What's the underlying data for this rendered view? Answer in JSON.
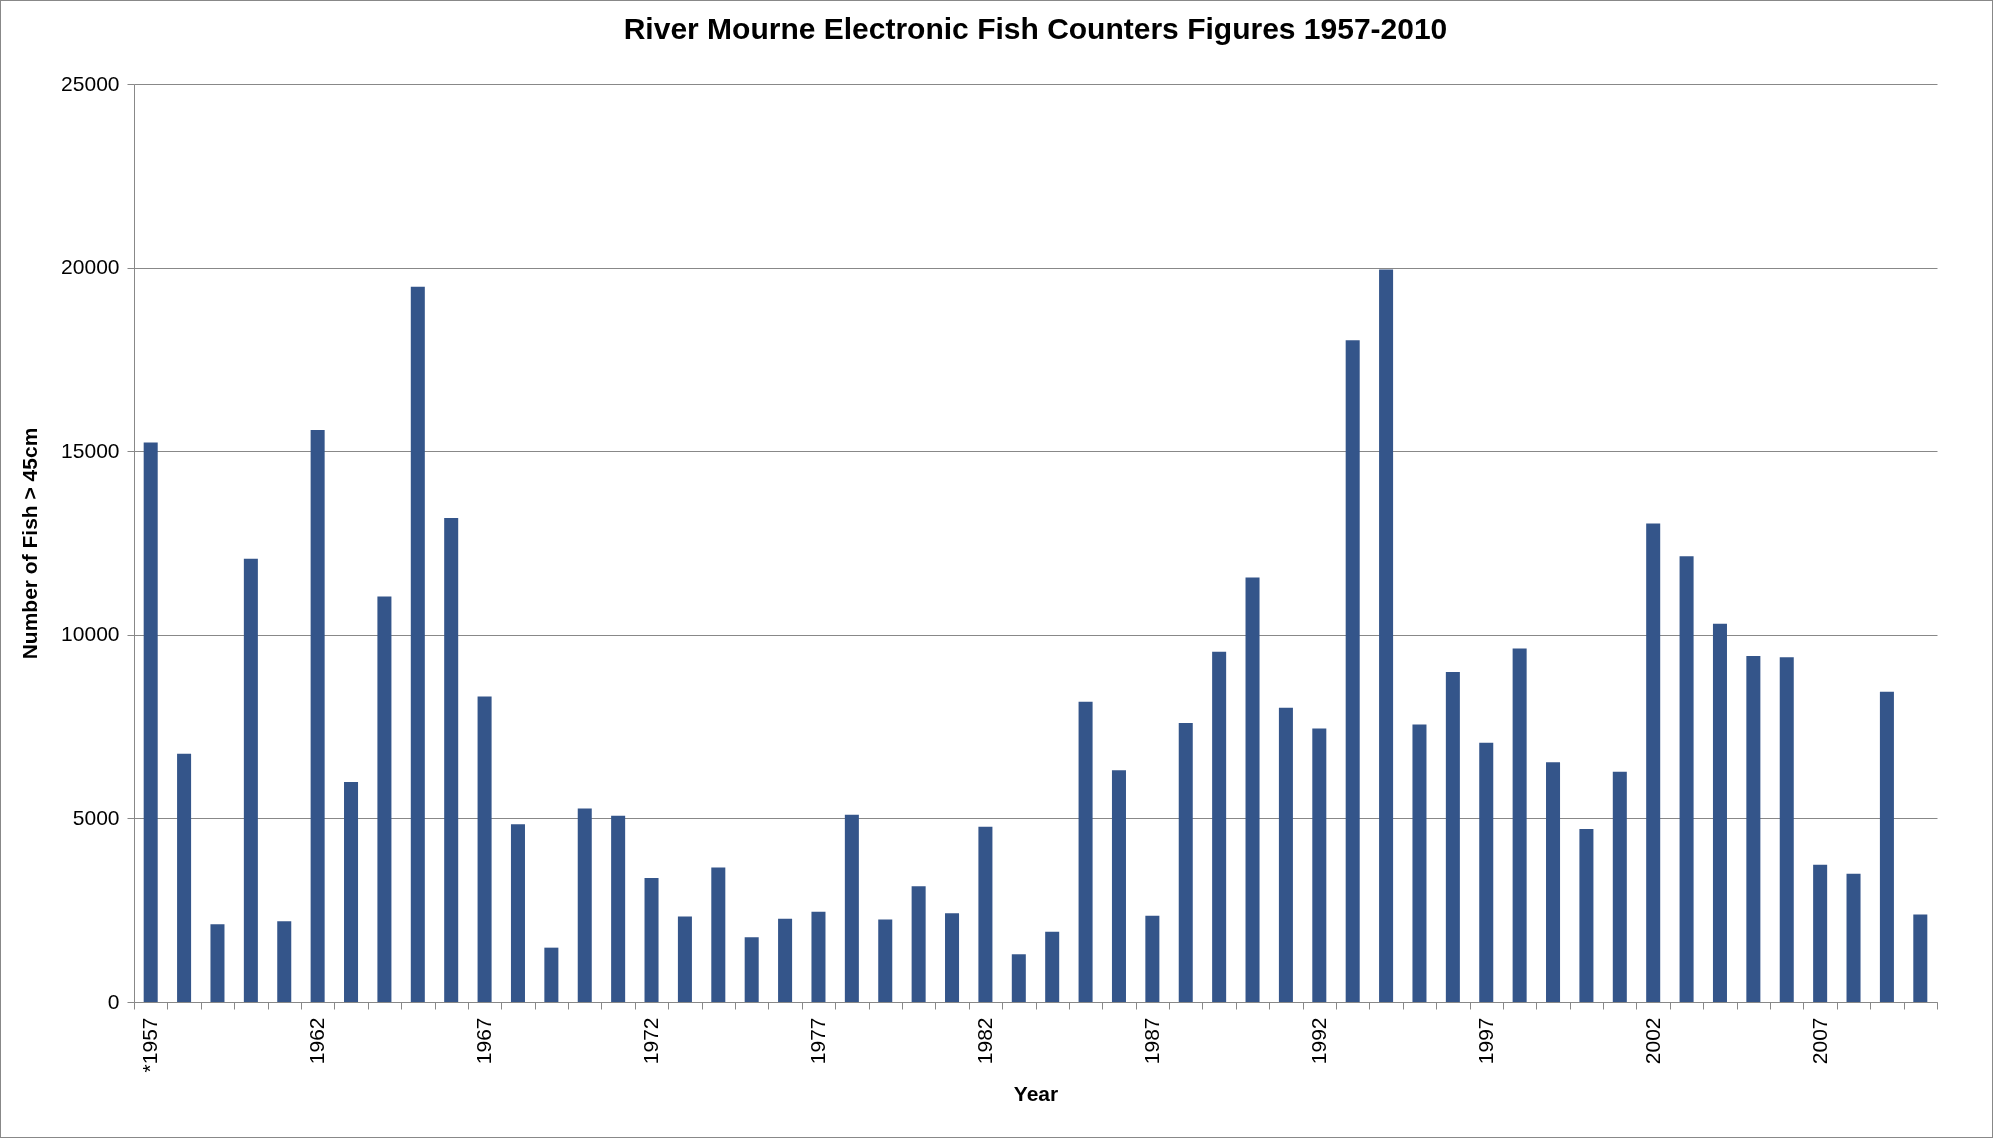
{
  "chart_data": {
    "type": "bar",
    "title": "River Mourne Electronic Fish Counters Figures 1957-2010",
    "xlabel": "Year",
    "ylabel": "Number of Fish > 45cm",
    "categories": [
      "*1957",
      null,
      null,
      null,
      null,
      "1962",
      null,
      null,
      null,
      null,
      "1967",
      null,
      null,
      null,
      null,
      "1972",
      null,
      null,
      null,
      null,
      "1977",
      null,
      null,
      null,
      null,
      "1982",
      null,
      null,
      null,
      null,
      "1987",
      null,
      null,
      null,
      null,
      "1992",
      null,
      null,
      null,
      null,
      "1997",
      null,
      null,
      null,
      null,
      "2002",
      null,
      null,
      null,
      null,
      "2007",
      null,
      null,
      null
    ],
    "values": [
      15240,
      6760,
      2120,
      12070,
      2200,
      15580,
      5990,
      11040,
      19480,
      13180,
      8320,
      4840,
      1480,
      5270,
      5070,
      3380,
      2330,
      3660,
      1760,
      2270,
      2460,
      5100,
      2250,
      3150,
      2420,
      4770,
      1300,
      1910,
      8180,
      6310,
      2350,
      7600,
      9540,
      11560,
      8010,
      7450,
      18020,
      19950,
      7560,
      8990,
      7060,
      9630,
      6530,
      4710,
      6270,
      13030,
      12140,
      10300,
      9420,
      9390,
      3740,
      3490,
      8450,
      2380
    ],
    "color": "#34558a",
    "ylim": [
      0,
      25000
    ],
    "yticks": [
      0,
      5000,
      10000,
      15000,
      20000,
      25000
    ],
    "grid": "y"
  }
}
